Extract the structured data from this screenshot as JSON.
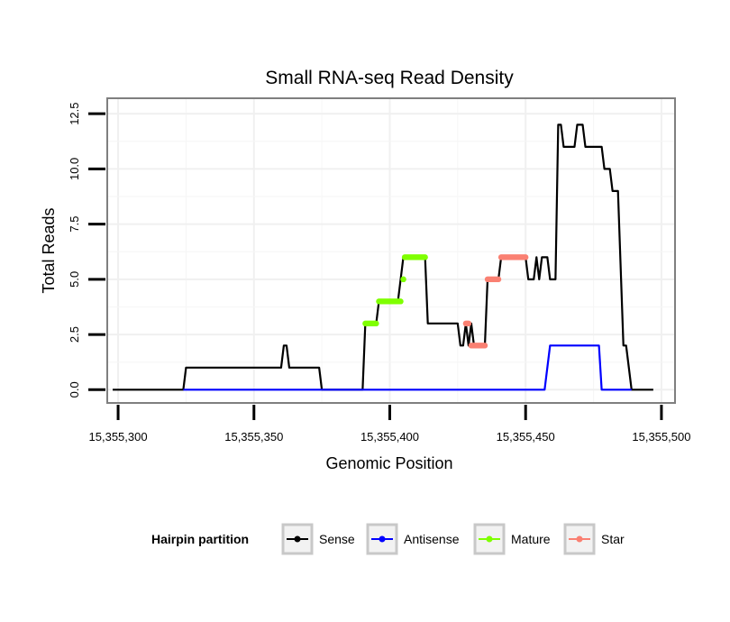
{
  "chart_data": {
    "type": "line",
    "title": "Small RNA-seq Read Density",
    "xlabel": "Genomic Position",
    "ylabel": "Total Reads",
    "xlim": [
      15355296,
      15355505
    ],
    "ylim": [
      -0.6,
      13.2
    ],
    "x_ticks": [
      15355300,
      15355350,
      15355400,
      15355450,
      15355500
    ],
    "x_tick_labels": [
      "15,355,300",
      "15,355,350",
      "15,355,400",
      "15,355,450",
      "15,355,500"
    ],
    "y_ticks": [
      0,
      2.5,
      5,
      7.5,
      10,
      12.5
    ],
    "y_tick_labels": [
      "0.0",
      "2.5",
      "5.0",
      "7.5",
      "10.0",
      "12.5"
    ],
    "grid": true,
    "legend": {
      "title": "Hairpin partition",
      "position": "bottom",
      "entries": [
        {
          "label": "Sense",
          "color": "#000000"
        },
        {
          "label": "Antisense",
          "color": "#0000ff"
        },
        {
          "label": "Mature",
          "color": "#7fff00"
        },
        {
          "label": "Star",
          "color": "#fa8072"
        }
      ]
    },
    "series": [
      {
        "name": "Sense",
        "color": "#000000",
        "points": [
          [
            15355298,
            0
          ],
          [
            15355324,
            0
          ],
          [
            15355325,
            1
          ],
          [
            15355360,
            1
          ],
          [
            15355361,
            2
          ],
          [
            15355362,
            2
          ],
          [
            15355363,
            1
          ],
          [
            15355374,
            1
          ],
          [
            15355375,
            0
          ],
          [
            15355390,
            0
          ],
          [
            15355391,
            3
          ],
          [
            15355395,
            3
          ],
          [
            15355396,
            4
          ],
          [
            15355403,
            4
          ],
          [
            15355404,
            5
          ],
          [
            15355405,
            6
          ],
          [
            15355413,
            6
          ],
          [
            15355414,
            3
          ],
          [
            15355425,
            3
          ],
          [
            15355426,
            2
          ],
          [
            15355427,
            2
          ],
          [
            15355428,
            3
          ],
          [
            15355429,
            2
          ],
          [
            15355430,
            3
          ],
          [
            15355431,
            2
          ],
          [
            15355435,
            2
          ],
          [
            15355436,
            5
          ],
          [
            15355440,
            5
          ],
          [
            15355441,
            6
          ],
          [
            15355450,
            6
          ],
          [
            15355451,
            5
          ],
          [
            15355453,
            5
          ],
          [
            15355454,
            6
          ],
          [
            15355455,
            5
          ],
          [
            15355456,
            6
          ],
          [
            15355458,
            6
          ],
          [
            15355459,
            5
          ],
          [
            15355461,
            5
          ],
          [
            15355462,
            12
          ],
          [
            15355463,
            12
          ],
          [
            15355464,
            11
          ],
          [
            15355468,
            11
          ],
          [
            15355469,
            12
          ],
          [
            15355471,
            12
          ],
          [
            15355472,
            11
          ],
          [
            15355478,
            11
          ],
          [
            15355479,
            10
          ],
          [
            15355481,
            10
          ],
          [
            15355482,
            9
          ],
          [
            15355484,
            9
          ],
          [
            15355486,
            2
          ],
          [
            15355487,
            2
          ],
          [
            15355489,
            0
          ],
          [
            15355497,
            0
          ]
        ]
      },
      {
        "name": "Antisense",
        "color": "#0000ff",
        "points": [
          [
            15355324,
            0
          ],
          [
            15355457,
            0
          ],
          [
            15355459,
            2
          ],
          [
            15355477,
            2
          ],
          [
            15355478,
            0
          ],
          [
            15355489,
            0
          ]
        ]
      },
      {
        "name": "Mature",
        "color": "#7fff00",
        "segments": [
          [
            [
              15355391,
              3
            ],
            [
              15355395,
              3
            ]
          ],
          [
            [
              15355396,
              4
            ],
            [
              15355404,
              4
            ]
          ],
          [
            [
              15355405,
              5
            ],
            [
              15355405,
              5
            ]
          ],
          [
            [
              15355405.5,
              6
            ],
            [
              15355413,
              6
            ]
          ]
        ]
      },
      {
        "name": "Star",
        "color": "#fa8072",
        "segments": [
          [
            [
              15355428,
              3
            ],
            [
              15355429,
              3
            ]
          ],
          [
            [
              15355430,
              2
            ],
            [
              15355435,
              2
            ]
          ],
          [
            [
              15355436,
              5
            ],
            [
              15355440,
              5
            ]
          ],
          [
            [
              15355441,
              6
            ],
            [
              15355450,
              6
            ]
          ]
        ]
      }
    ]
  }
}
